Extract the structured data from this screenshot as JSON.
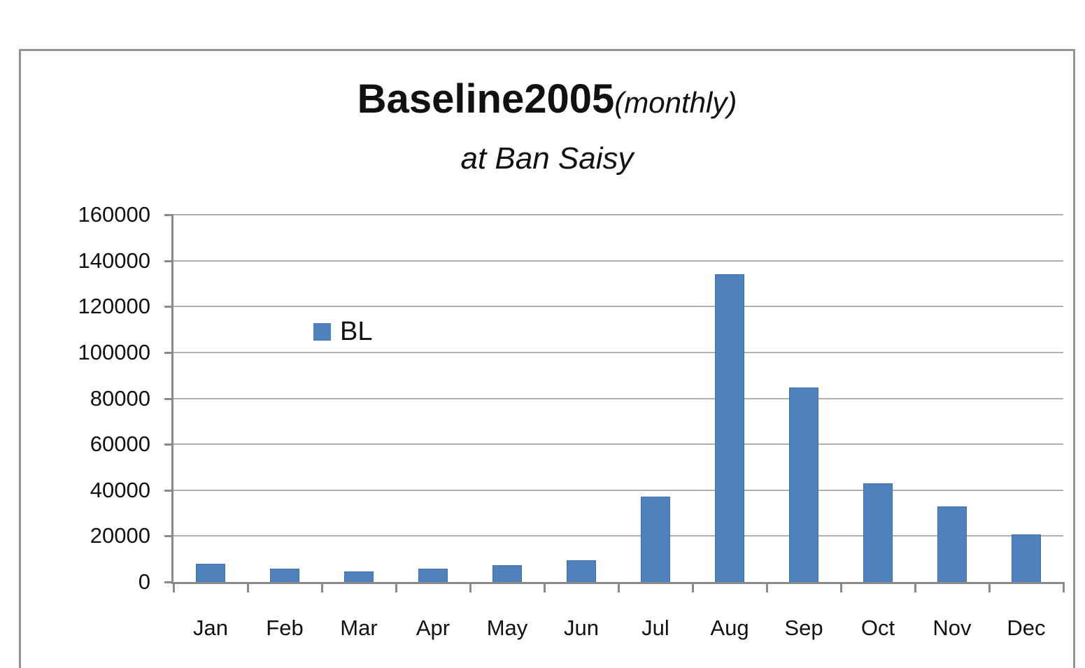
{
  "chart_data": {
    "type": "bar",
    "title_main": "Baseline2005",
    "title_suffix": "(monthly)",
    "subtitle": "at Ban Saisy",
    "categories": [
      "Jan",
      "Feb",
      "Mar",
      "Apr",
      "May",
      "Jun",
      "Jul",
      "Aug",
      "Sep",
      "Oct",
      "Nov",
      "Dec"
    ],
    "series": [
      {
        "name": "BL",
        "color": "#4F81BD",
        "values": [
          8000,
          5800,
          4500,
          5800,
          7400,
          9400,
          37200,
          134000,
          84600,
          43000,
          33000,
          20800
        ]
      }
    ],
    "xlabel": "",
    "ylabel": "",
    "ylim": [
      0,
      160000
    ],
    "ytick_step": 20000,
    "ytick_labels": [
      "0",
      "20000",
      "40000",
      "60000",
      "80000",
      "100000",
      "120000",
      "140000",
      "160000"
    ],
    "grid": true,
    "legend_position": "inside-left"
  },
  "colors": {
    "bar": "#4F81BD",
    "bar_border": "#3E6FA9",
    "axis": "#8A8A8A",
    "gridline": "#B0B0B0",
    "frame_border": "#949494",
    "text": "#111111",
    "background": "#FFFFFF"
  }
}
